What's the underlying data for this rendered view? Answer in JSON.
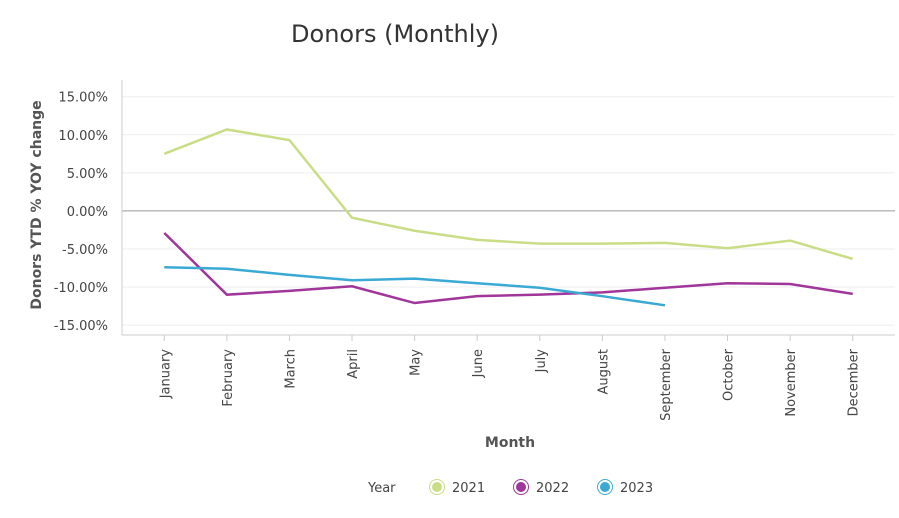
{
  "chart_data": {
    "type": "line",
    "title": "Donors (Monthly)",
    "x_label": "Month",
    "y_label": "Donors YTD % YOY change",
    "categories": [
      "January",
      "February",
      "March",
      "April",
      "May",
      "June",
      "July",
      "August",
      "September",
      "October",
      "November",
      "December"
    ],
    "series": [
      {
        "name": "2021",
        "color": "#c9dd86",
        "values": [
          7.5,
          10.7,
          9.3,
          -0.9,
          -2.6,
          -3.8,
          -4.3,
          -4.3,
          -4.2,
          -4.9,
          -3.9,
          -6.3
        ]
      },
      {
        "name": "2022",
        "color": "#a0369a",
        "values": [
          -2.9,
          -11.0,
          -10.5,
          -9.9,
          -12.1,
          -11.2,
          -11.0,
          -10.7,
          -10.1,
          -9.5,
          -9.6,
          -10.9
        ]
      },
      {
        "name": "2023",
        "color": "#3aa9d4",
        "values": [
          -7.4,
          -7.6,
          -8.4,
          -9.1,
          -8.9,
          -9.5,
          -10.1,
          -11.2,
          -12.4,
          null,
          null,
          null
        ]
      }
    ],
    "ylim": [
      -16.3,
      17.2
    ],
    "yticks": [
      {
        "value": 15,
        "label": "15.00%"
      },
      {
        "value": 10,
        "label": "10.00%"
      },
      {
        "value": 5,
        "label": "5.00%"
      },
      {
        "value": 0,
        "label": "0.00%"
      },
      {
        "value": -5,
        "label": "-5.00%"
      },
      {
        "value": -10,
        "label": "-10.00%"
      },
      {
        "value": -15,
        "label": "-15.00%"
      }
    ],
    "grid": true,
    "legend_title": "Year",
    "legend": "bottom"
  }
}
